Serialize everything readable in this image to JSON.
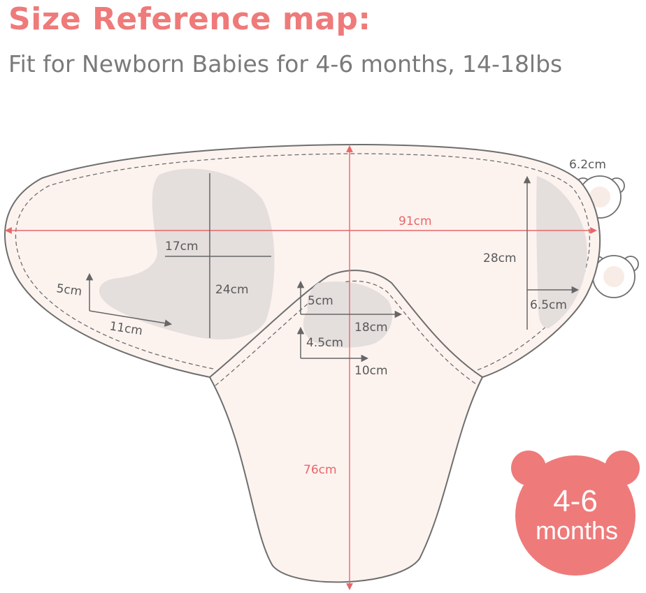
{
  "header": {
    "title": "Size Reference map:",
    "subtitle": "Fit for Newborn Babies for 4-6 months, 14-18lbs"
  },
  "dimensions": {
    "width": "91cm",
    "length": "76cm",
    "ear": "6.2cm",
    "wing_height": "28cm",
    "wing_width": "6.5cm",
    "pocket_width": "17cm",
    "pocket_height": "24cm",
    "pocket_corner_height": "5cm",
    "pocket_corner_width": "11cm",
    "neck_top_height": "5cm",
    "neck_top_width": "18cm",
    "neck_bottom_height": "4.5cm",
    "neck_bottom_width": "10cm"
  },
  "badge": {
    "line1": "4-6",
    "line2": "months"
  },
  "colors": {
    "accent": "#ef7a7a",
    "measure_line": "#e8666a",
    "fabric": "#fcf3ef",
    "panel": "#e4dedd",
    "outline": "#6e6e6e"
  }
}
